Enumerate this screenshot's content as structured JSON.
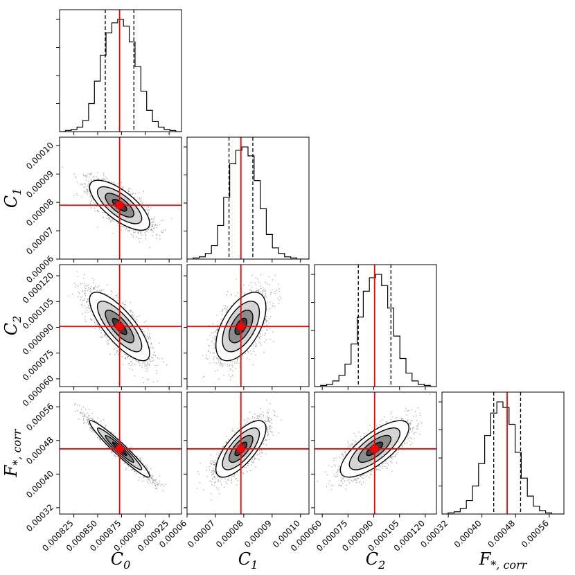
{
  "chart_data": {
    "type": "corner",
    "parameters": [
      {
        "key": "C0",
        "label": "C",
        "subscript": "0",
        "truth": 0.000873,
        "q16": 0.000858,
        "q84": 0.000888,
        "range": [
          0.00081,
          0.000938
        ],
        "ticks": [
          0.000825,
          0.00085,
          0.000875,
          0.0009,
          0.000925
        ],
        "tick_labels": [
          "0.000825",
          "0.000850",
          "0.000875",
          "0.000900",
          "0.000925"
        ],
        "hist": [
          0.0,
          0.01,
          0.02,
          0.04,
          0.1,
          0.25,
          0.45,
          0.68,
          0.88,
          0.97,
          1.0,
          0.94,
          0.8,
          0.58,
          0.36,
          0.19,
          0.09,
          0.04,
          0.02,
          0.01,
          0.0
        ]
      },
      {
        "key": "C1",
        "label": "C",
        "subscript": "1",
        "truth": 7.9e-05,
        "q16": 7.48e-05,
        "q84": 8.32e-05,
        "range": [
          6e-05,
          0.000103
        ],
        "ticks": [
          6e-05,
          7e-05,
          8e-05,
          9e-05,
          0.0001
        ],
        "tick_labels": [
          "0.00006",
          "0.00007",
          "0.00008",
          "0.00009",
          "0.00010"
        ],
        "hist": [
          0.0,
          0.01,
          0.02,
          0.05,
          0.12,
          0.3,
          0.55,
          0.85,
          0.97,
          1.0,
          0.92,
          0.7,
          0.45,
          0.22,
          0.1,
          0.05,
          0.02,
          0.01,
          0.0,
          0.0
        ]
      },
      {
        "key": "C2",
        "label": "C",
        "subscript": "2",
        "truth": 9.05e-05,
        "q16": 8.1e-05,
        "q84": 0.0001,
        "range": [
          5.55e-05,
          0.0001265
        ],
        "ticks": [
          6e-05,
          7.5e-05,
          9e-05,
          0.000105,
          0.00012
        ],
        "tick_labels": [
          "0.000060",
          "0.000075",
          "0.000090",
          "0.000105",
          "0.000120"
        ],
        "hist": [
          0.0,
          0.01,
          0.02,
          0.05,
          0.1,
          0.2,
          0.38,
          0.62,
          0.85,
          0.97,
          1.0,
          0.9,
          0.7,
          0.45,
          0.25,
          0.12,
          0.05,
          0.02,
          0.01,
          0.0
        ]
      },
      {
        "key": "Fcorr",
        "label": "F",
        "subscript": "*, corr",
        "truth": 0.00046,
        "q16": 0.000428,
        "q84": 0.000492,
        "range": [
          0.000305,
          0.000595
        ],
        "ticks": [
          0.00032,
          0.0004,
          0.00048,
          0.00056
        ],
        "tick_labels": [
          "0.00032",
          "0.00040",
          "0.00048",
          "0.00056"
        ],
        "hist": [
          0.0,
          0.01,
          0.02,
          0.05,
          0.12,
          0.25,
          0.45,
          0.7,
          0.9,
          1.0,
          0.95,
          0.8,
          0.55,
          0.32,
          0.16,
          0.07,
          0.03,
          0.01,
          0.0,
          0.0
        ]
      }
    ],
    "correlations": {
      "C1_C0": -0.72,
      "C2_C0": -0.78,
      "C2_C1": 0.55,
      "Fcorr_C0": -0.96,
      "Fcorr_C1": 0.72,
      "Fcorr_C2": 0.75
    },
    "grid": false,
    "truth_color": "#ff0000",
    "quantile_style": "dashed"
  }
}
